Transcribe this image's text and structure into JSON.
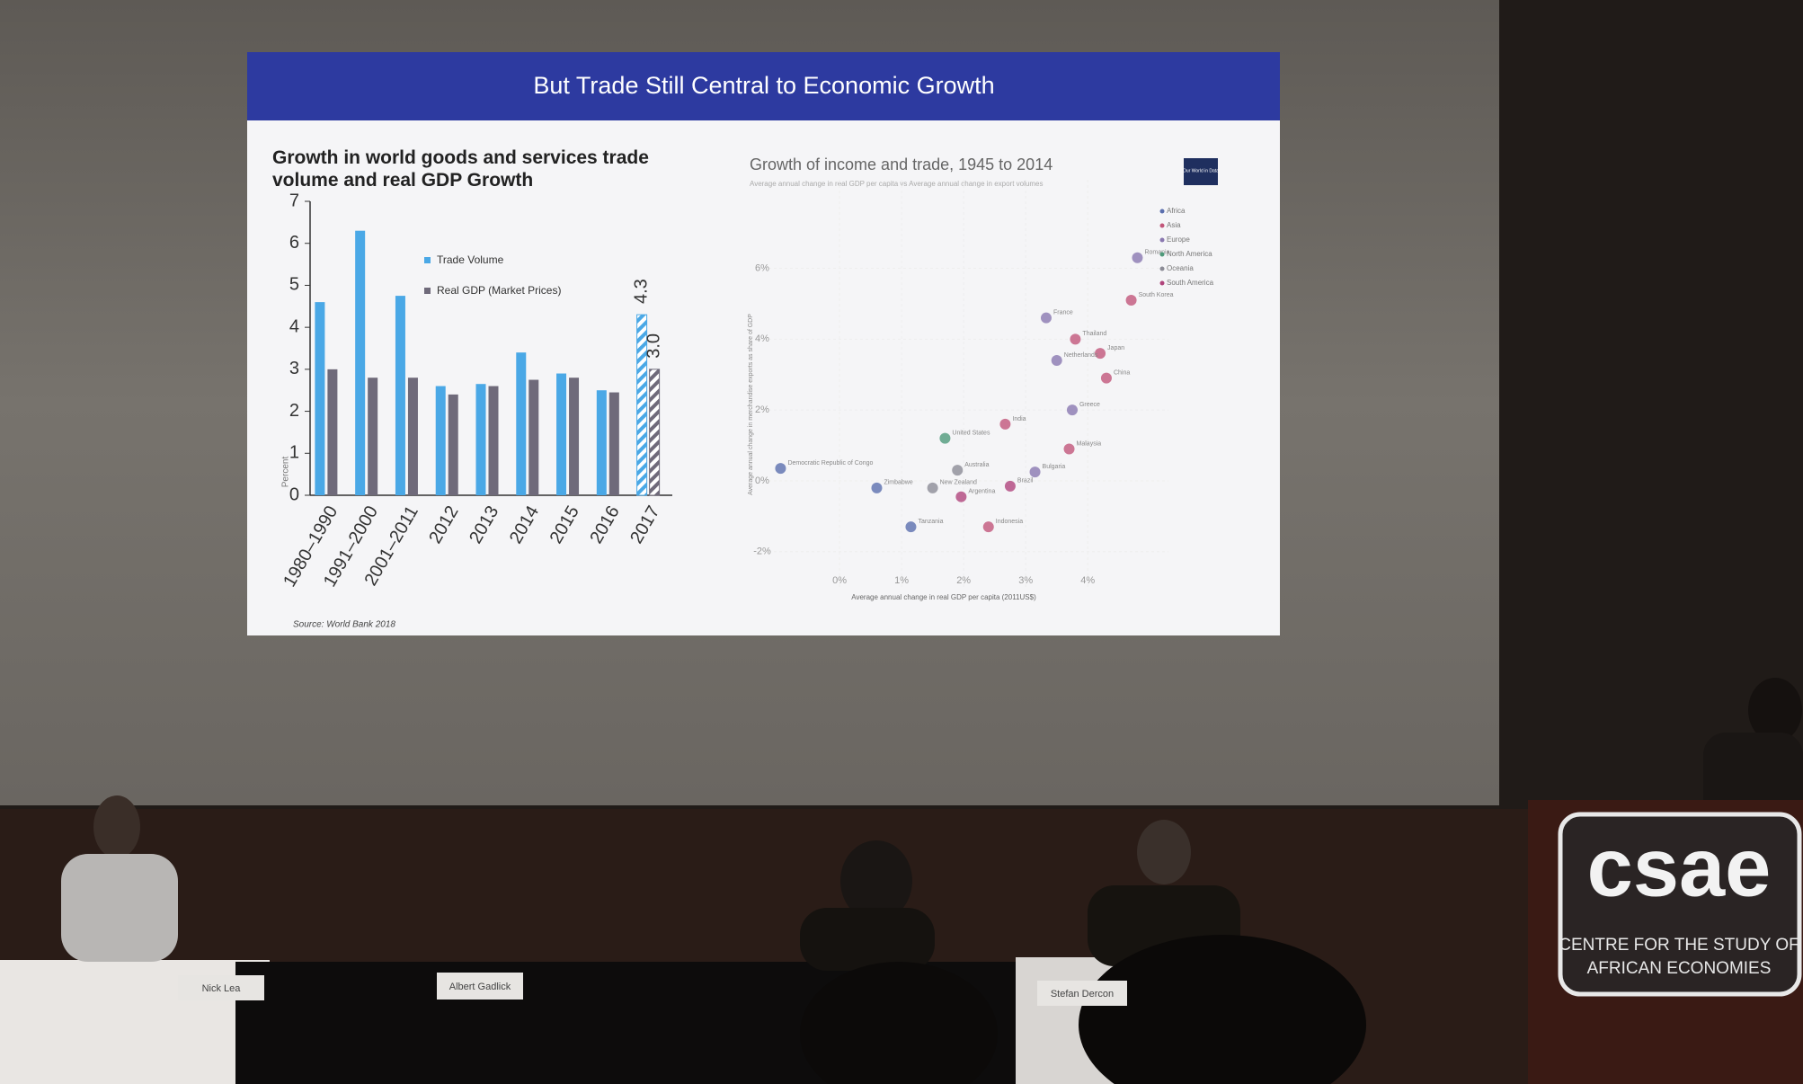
{
  "slide": {
    "title": "But Trade Still Central to Economic Growth"
  },
  "chart_data": [
    {
      "type": "bar",
      "title": "Growth in world goods and services trade volume and real GDP Growth",
      "y_label": "Percent",
      "source": "Source: World Bank 2018",
      "categories": [
        "1980–1990",
        "1991–2000",
        "2001–2011",
        "2012",
        "2013",
        "2014",
        "2015",
        "2016",
        "2017"
      ],
      "series": [
        {
          "name": "Trade Volume",
          "color": "#4aa8e6",
          "values": [
            4.6,
            6.3,
            4.75,
            2.6,
            2.65,
            3.4,
            2.9,
            2.5,
            4.3
          ],
          "value_labels": [
            null,
            null,
            null,
            null,
            null,
            null,
            null,
            null,
            "4.3"
          ]
        },
        {
          "name": "Real GDP (Market Prices)",
          "color": "#6f6a7a",
          "values": [
            3.0,
            2.8,
            2.8,
            2.4,
            2.6,
            2.75,
            2.8,
            2.45,
            3.0
          ],
          "value_labels": [
            null,
            null,
            null,
            null,
            null,
            null,
            null,
            null,
            "3.0"
          ]
        }
      ],
      "ylim": [
        0,
        7
      ],
      "yticks": [
        0,
        1,
        2,
        3,
        4,
        5,
        6,
        7
      ],
      "grid": false
    },
    {
      "type": "scatter",
      "title": "Growth of income and trade, 1945 to 2014",
      "subtitle": "Average annual change in real GDP per capita vs Average annual change in export volumes",
      "x_label": "Average annual change in real GDP per capita (2011US$)",
      "y_label": "Average annual change in merchandise exports as share of GDP",
      "logo": "Our World in Data",
      "xlim": [
        -1,
        5.3
      ],
      "ylim": [
        -3.3,
        8.5
      ],
      "xticks": [
        {
          "value": 0,
          "label": "0%"
        },
        {
          "value": 1,
          "label": "1%"
        },
        {
          "value": 2,
          "label": "2%"
        },
        {
          "value": 3,
          "label": "3%"
        },
        {
          "value": 4,
          "label": "4%"
        }
      ],
      "yticks": [
        {
          "value": -2,
          "label": "-2%"
        },
        {
          "value": 0,
          "label": "0%"
        },
        {
          "value": 2,
          "label": "2%"
        },
        {
          "value": 4,
          "label": "4%"
        },
        {
          "value": 6,
          "label": "6%"
        }
      ],
      "series": [
        {
          "name": "Africa",
          "color": "#5b6fae",
          "x": [
            -0.95,
            0.6,
            1.15
          ],
          "values": [
            0.35,
            -0.2,
            -1.3
          ],
          "labels": [
            "Democratic Republic of Congo",
            "Zimbabwe",
            "Tanzania"
          ]
        },
        {
          "name": "Asia",
          "color": "#c2567a",
          "x": [
            4.3,
            2.67,
            4.2,
            3.8,
            4.7,
            2.4,
            3.7
          ],
          "values": [
            2.9,
            1.6,
            3.6,
            4.0,
            5.1,
            -1.3,
            0.9
          ],
          "labels": [
            "China",
            "India",
            "Japan",
            "Thailand",
            "South Korea",
            "Indonesia",
            "Malaysia"
          ]
        },
        {
          "name": "Europe",
          "color": "#8a78b0",
          "x": [
            4.8,
            3.75,
            3.15,
            3.33,
            3.5
          ],
          "values": [
            6.3,
            2.0,
            0.25,
            4.6,
            3.4
          ],
          "labels": [
            "Romania",
            "Greece",
            "Bulgaria",
            "France",
            "Netherlands"
          ]
        },
        {
          "name": "North America",
          "color": "#4f9a7a",
          "x": [
            1.7
          ],
          "values": [
            1.2
          ],
          "labels": [
            "United States"
          ]
        },
        {
          "name": "Oceania",
          "color": "#8c8c96",
          "x": [
            1.9,
            1.5
          ],
          "values": [
            0.3,
            -0.2
          ],
          "labels": [
            "Australia",
            "New Zealand"
          ]
        },
        {
          "name": "South America",
          "color": "#b0457c",
          "x": [
            2.75,
            1.96
          ],
          "values": [
            -0.15,
            -0.45
          ],
          "labels": [
            "Brazil",
            "Argentina"
          ]
        }
      ]
    }
  ],
  "name_plates": [
    "Nick Lea",
    "Albert Gadlick",
    "Stefan Dercon"
  ],
  "logo": {
    "text": "csae",
    "lines": [
      "CENTRE FOR THE STUDY OF",
      "AFRICAN ECONOMIES"
    ]
  }
}
